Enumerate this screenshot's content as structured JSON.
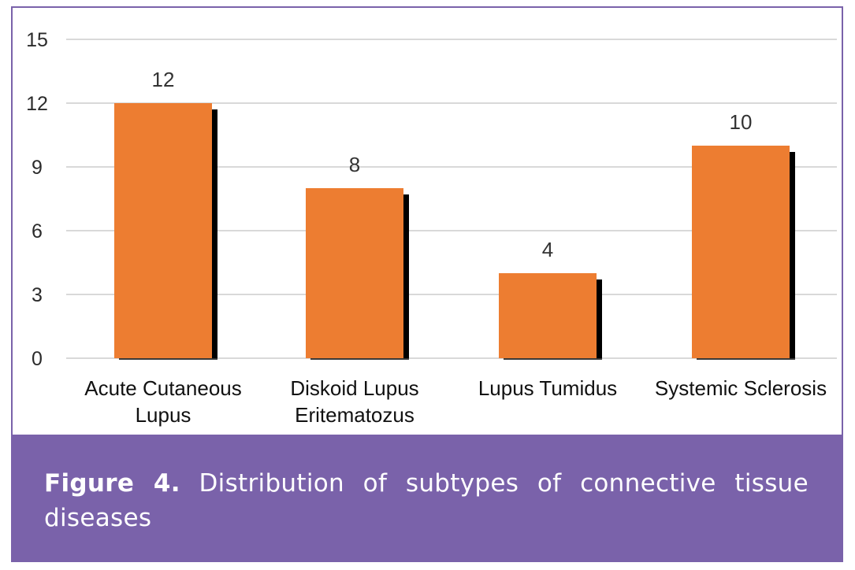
{
  "chart_data": {
    "type": "bar",
    "categories": [
      [
        "Acute Cutaneous",
        "Lupus"
      ],
      [
        "Diskoid Lupus",
        "Eritematozus"
      ],
      [
        "Lupus Tumidus"
      ],
      [
        "Systemic Sclerosis"
      ]
    ],
    "values": [
      12,
      8,
      4,
      10
    ],
    "data_labels": [
      "12",
      "8",
      "4",
      "10"
    ],
    "yticks": [
      0,
      3,
      6,
      9,
      12,
      15
    ],
    "ylim": [
      0,
      15
    ],
    "grid": true,
    "bar_color": "#ed7d31",
    "shadow_color": "#000000",
    "grid_color": "#d9d9d9",
    "title": "",
    "xlabel": "",
    "ylabel": ""
  },
  "caption": {
    "label": "Figure 4.",
    "text": " Distribution of subtypes of connective tissue diseases"
  },
  "colors": {
    "panel": "#7a62aa",
    "caption_text": "#ffffff"
  }
}
